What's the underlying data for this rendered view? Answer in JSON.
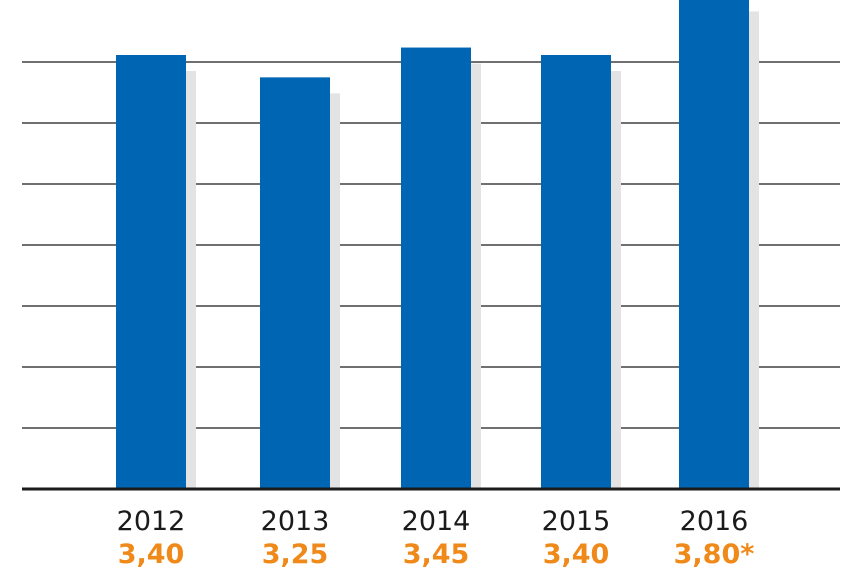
{
  "chart_data": {
    "type": "bar",
    "categories": [
      "2012",
      "2013",
      "2014",
      "2015",
      "2016"
    ],
    "values": [
      3.4,
      3.25,
      3.45,
      3.4,
      3.8
    ],
    "value_labels": [
      "3,40",
      "3,25",
      "3,45",
      "3,40",
      "3,80*"
    ],
    "title": "",
    "xlabel": "",
    "ylabel": "",
    "grid": true,
    "legend": "none",
    "colors": {
      "bar": "#0066b3",
      "shadow": "#e3e3e3",
      "value_label": "#ef8a1a",
      "gridline": "#1a1a1a",
      "category_label": "#1a1a1a"
    }
  }
}
